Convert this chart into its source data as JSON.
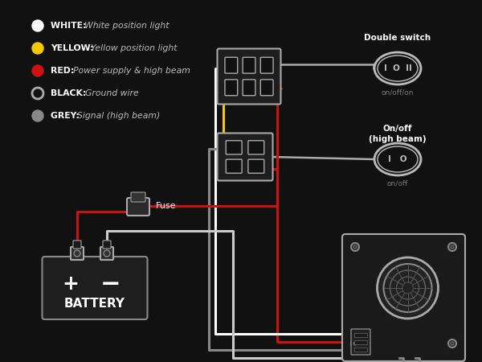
{
  "bg_color": "#111111",
  "wire_colors": {
    "white": "#ffffff",
    "yellow": "#f5c800",
    "red": "#cc1111",
    "black": "#aaaaaa",
    "grey": "#888888"
  },
  "legend_items": [
    {
      "color": "#ffffff",
      "filled": true,
      "label_bold": "WHITE:",
      "label_italic": "White position light"
    },
    {
      "color": "#f5c800",
      "filled": true,
      "label_bold": "YELLOW:",
      "label_italic": "Yellow position light"
    },
    {
      "color": "#cc1111",
      "filled": true,
      "label_bold": "RED:",
      "label_italic": "Power supply & high beam"
    },
    {
      "color": "#aaaaaa",
      "filled": false,
      "label_bold": "BLACK:",
      "label_italic": "Ground wire"
    },
    {
      "color": "#888888",
      "filled": true,
      "label_bold": "GREY:",
      "label_italic": "Signal (high beam)"
    }
  ],
  "switch1_label": "Double switch",
  "switch1_sub": "on/off/on",
  "switch2_label": "On/off\n(high beam)",
  "switch2_sub": "on/off",
  "fuse_label": "Fuse",
  "battery_label": "BATTERY"
}
